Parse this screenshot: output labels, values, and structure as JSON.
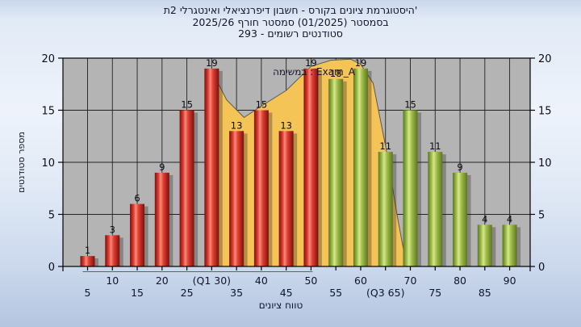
{
  "title": {
    "line1": "'היסטוגרמת ציונים בקורס - חשבון דיפרנציאלי ואינטגרלי 2ת",
    "line2": "בסמסטר  (01/2025)  סמסטר חורף 2025/26",
    "line3": "סטודנטים רשומים - 293"
  },
  "chart_data": {
    "type": "bar",
    "title_lines": [
      "'היסטוגרמת ציונים בקורס - חשבון דיפרנציאלי ואינטגרלי 2ת",
      "בסמסטר  (01/2025)  סמסטר חורף 2025/26",
      "סטודנטים רשומים - 293"
    ],
    "annotation": "במשימה : Exam_A",
    "xlabel": "טווח ציונים",
    "ylabel": "מספר סטודנטים",
    "categories": [
      "5",
      "10",
      "15",
      "20",
      "25",
      "(Q1 30)",
      "35",
      "40",
      "45",
      "50",
      "55",
      "60",
      "(Q3 65)",
      "70",
      "75",
      "80",
      "85",
      "90"
    ],
    "values": [
      1,
      3,
      6,
      9,
      15,
      19,
      13,
      15,
      13,
      19,
      18,
      19,
      11,
      15,
      11,
      9,
      4,
      4
    ],
    "bar_labels": [
      "1",
      "3",
      "6",
      "9",
      "15",
      "19",
      "13",
      "15",
      "13",
      "19",
      "18",
      "19",
      "11",
      "15",
      "11",
      "9",
      "4",
      "4"
    ],
    "bar_colors": [
      "red",
      "red",
      "red",
      "red",
      "red",
      "red",
      "red",
      "red",
      "red",
      "red",
      "green",
      "green",
      "green",
      "green",
      "green",
      "green",
      "green",
      "green"
    ],
    "ylim": [
      0,
      20
    ],
    "yticks": [
      0,
      5,
      10,
      15,
      20
    ],
    "grid": true,
    "legend_position": "none",
    "area_series": {
      "name": "smoothed-distribution-band",
      "points_index_value": [
        [
          5,
          0
        ],
        [
          5,
          18.8
        ],
        [
          5.6,
          16.0
        ],
        [
          6.3,
          14.3
        ],
        [
          7,
          15.4
        ],
        [
          8,
          16.9
        ],
        [
          9,
          19.2
        ],
        [
          9.8,
          19.8
        ],
        [
          10.6,
          19.9
        ],
        [
          11,
          19.4
        ],
        [
          11.5,
          17.6
        ],
        [
          12,
          11.6
        ],
        [
          12.5,
          4.5
        ],
        [
          12.85,
          0
        ]
      ]
    },
    "range_line_indices": [
      0,
      9
    ],
    "colors": {
      "plot_bg": "#b4b4b4",
      "grid": "#222222",
      "axis": "#000000",
      "red_dark": "#7a100c",
      "red_main": "#e44034",
      "red_light": "#f58d7d",
      "green_dark": "#5c7522",
      "green_main": "#a2c24a",
      "green_light": "#d7e694",
      "area_fill": "#f5c457",
      "area_stroke": "#5a5a5a",
      "text": "#14142c",
      "bar_label": "#0a0a14"
    }
  }
}
